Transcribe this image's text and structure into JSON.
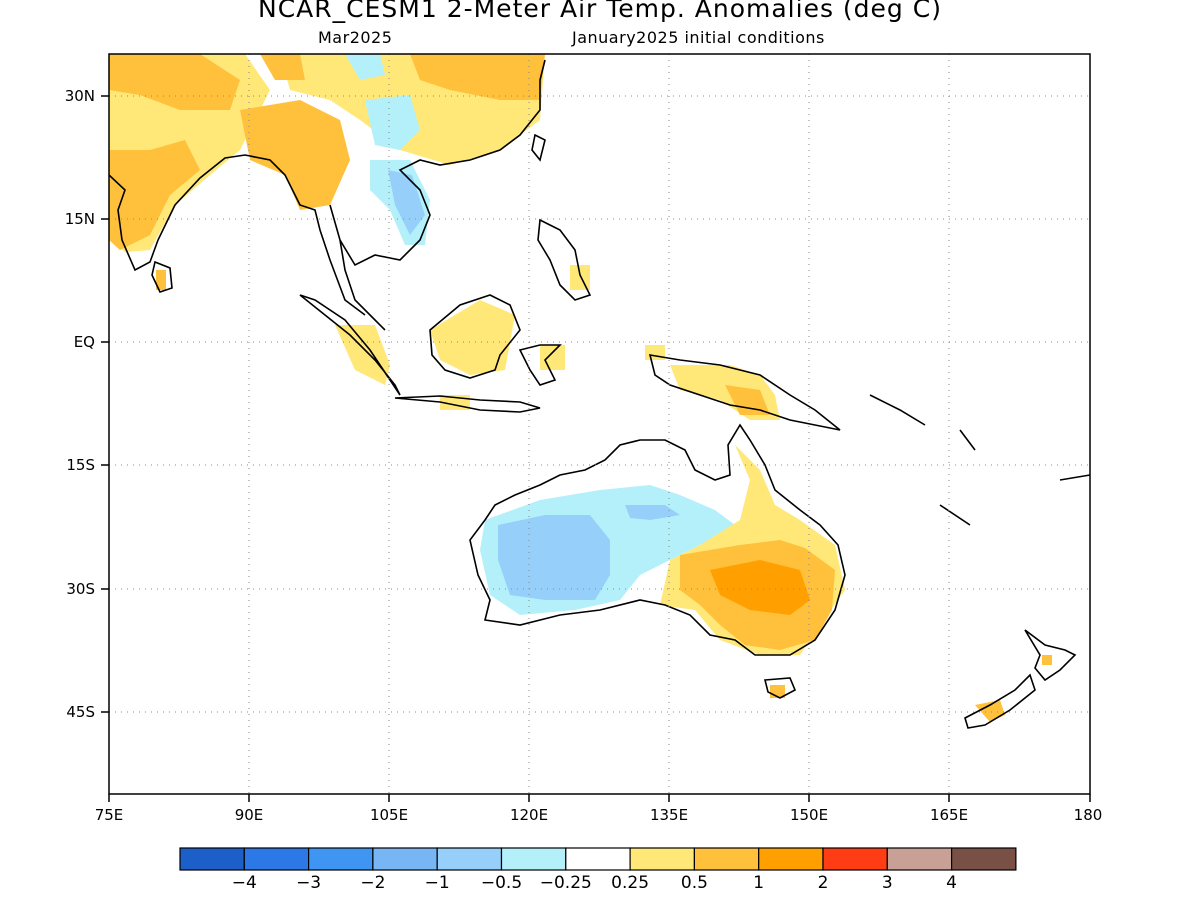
{
  "title": "NCAR_CESM1 2-Meter Air Temp. Anomalies (deg C)",
  "valid_month": "Mar2025",
  "init_conditions": "January2025 initial conditions",
  "map": {
    "lon_ticks": [
      "75E",
      "90E",
      "105E",
      "120E",
      "135E",
      "150E",
      "165E",
      "180"
    ],
    "lat_ticks": [
      "30N",
      "15N",
      "EQ",
      "15S",
      "30S",
      "45S"
    ],
    "lon_range": [
      75,
      180
    ],
    "lat_range": [
      -55,
      35
    ],
    "grid": "dotted"
  },
  "colorbar": {
    "colors": [
      "#1c5fc9",
      "#2b78e6",
      "#3f96f2",
      "#78b5f5",
      "#96d0fa",
      "#b4f0fa",
      "#ffffff",
      "#ffe878",
      "#ffc03c",
      "#ffa000",
      "#ff3c14",
      "#c8a096",
      "#785046"
    ],
    "labels": [
      "-4",
      "-3",
      "-2",
      "-1",
      "-0.5",
      "-0.25",
      "0.25",
      "0.5",
      "1",
      "2",
      "3",
      "4"
    ]
  }
}
